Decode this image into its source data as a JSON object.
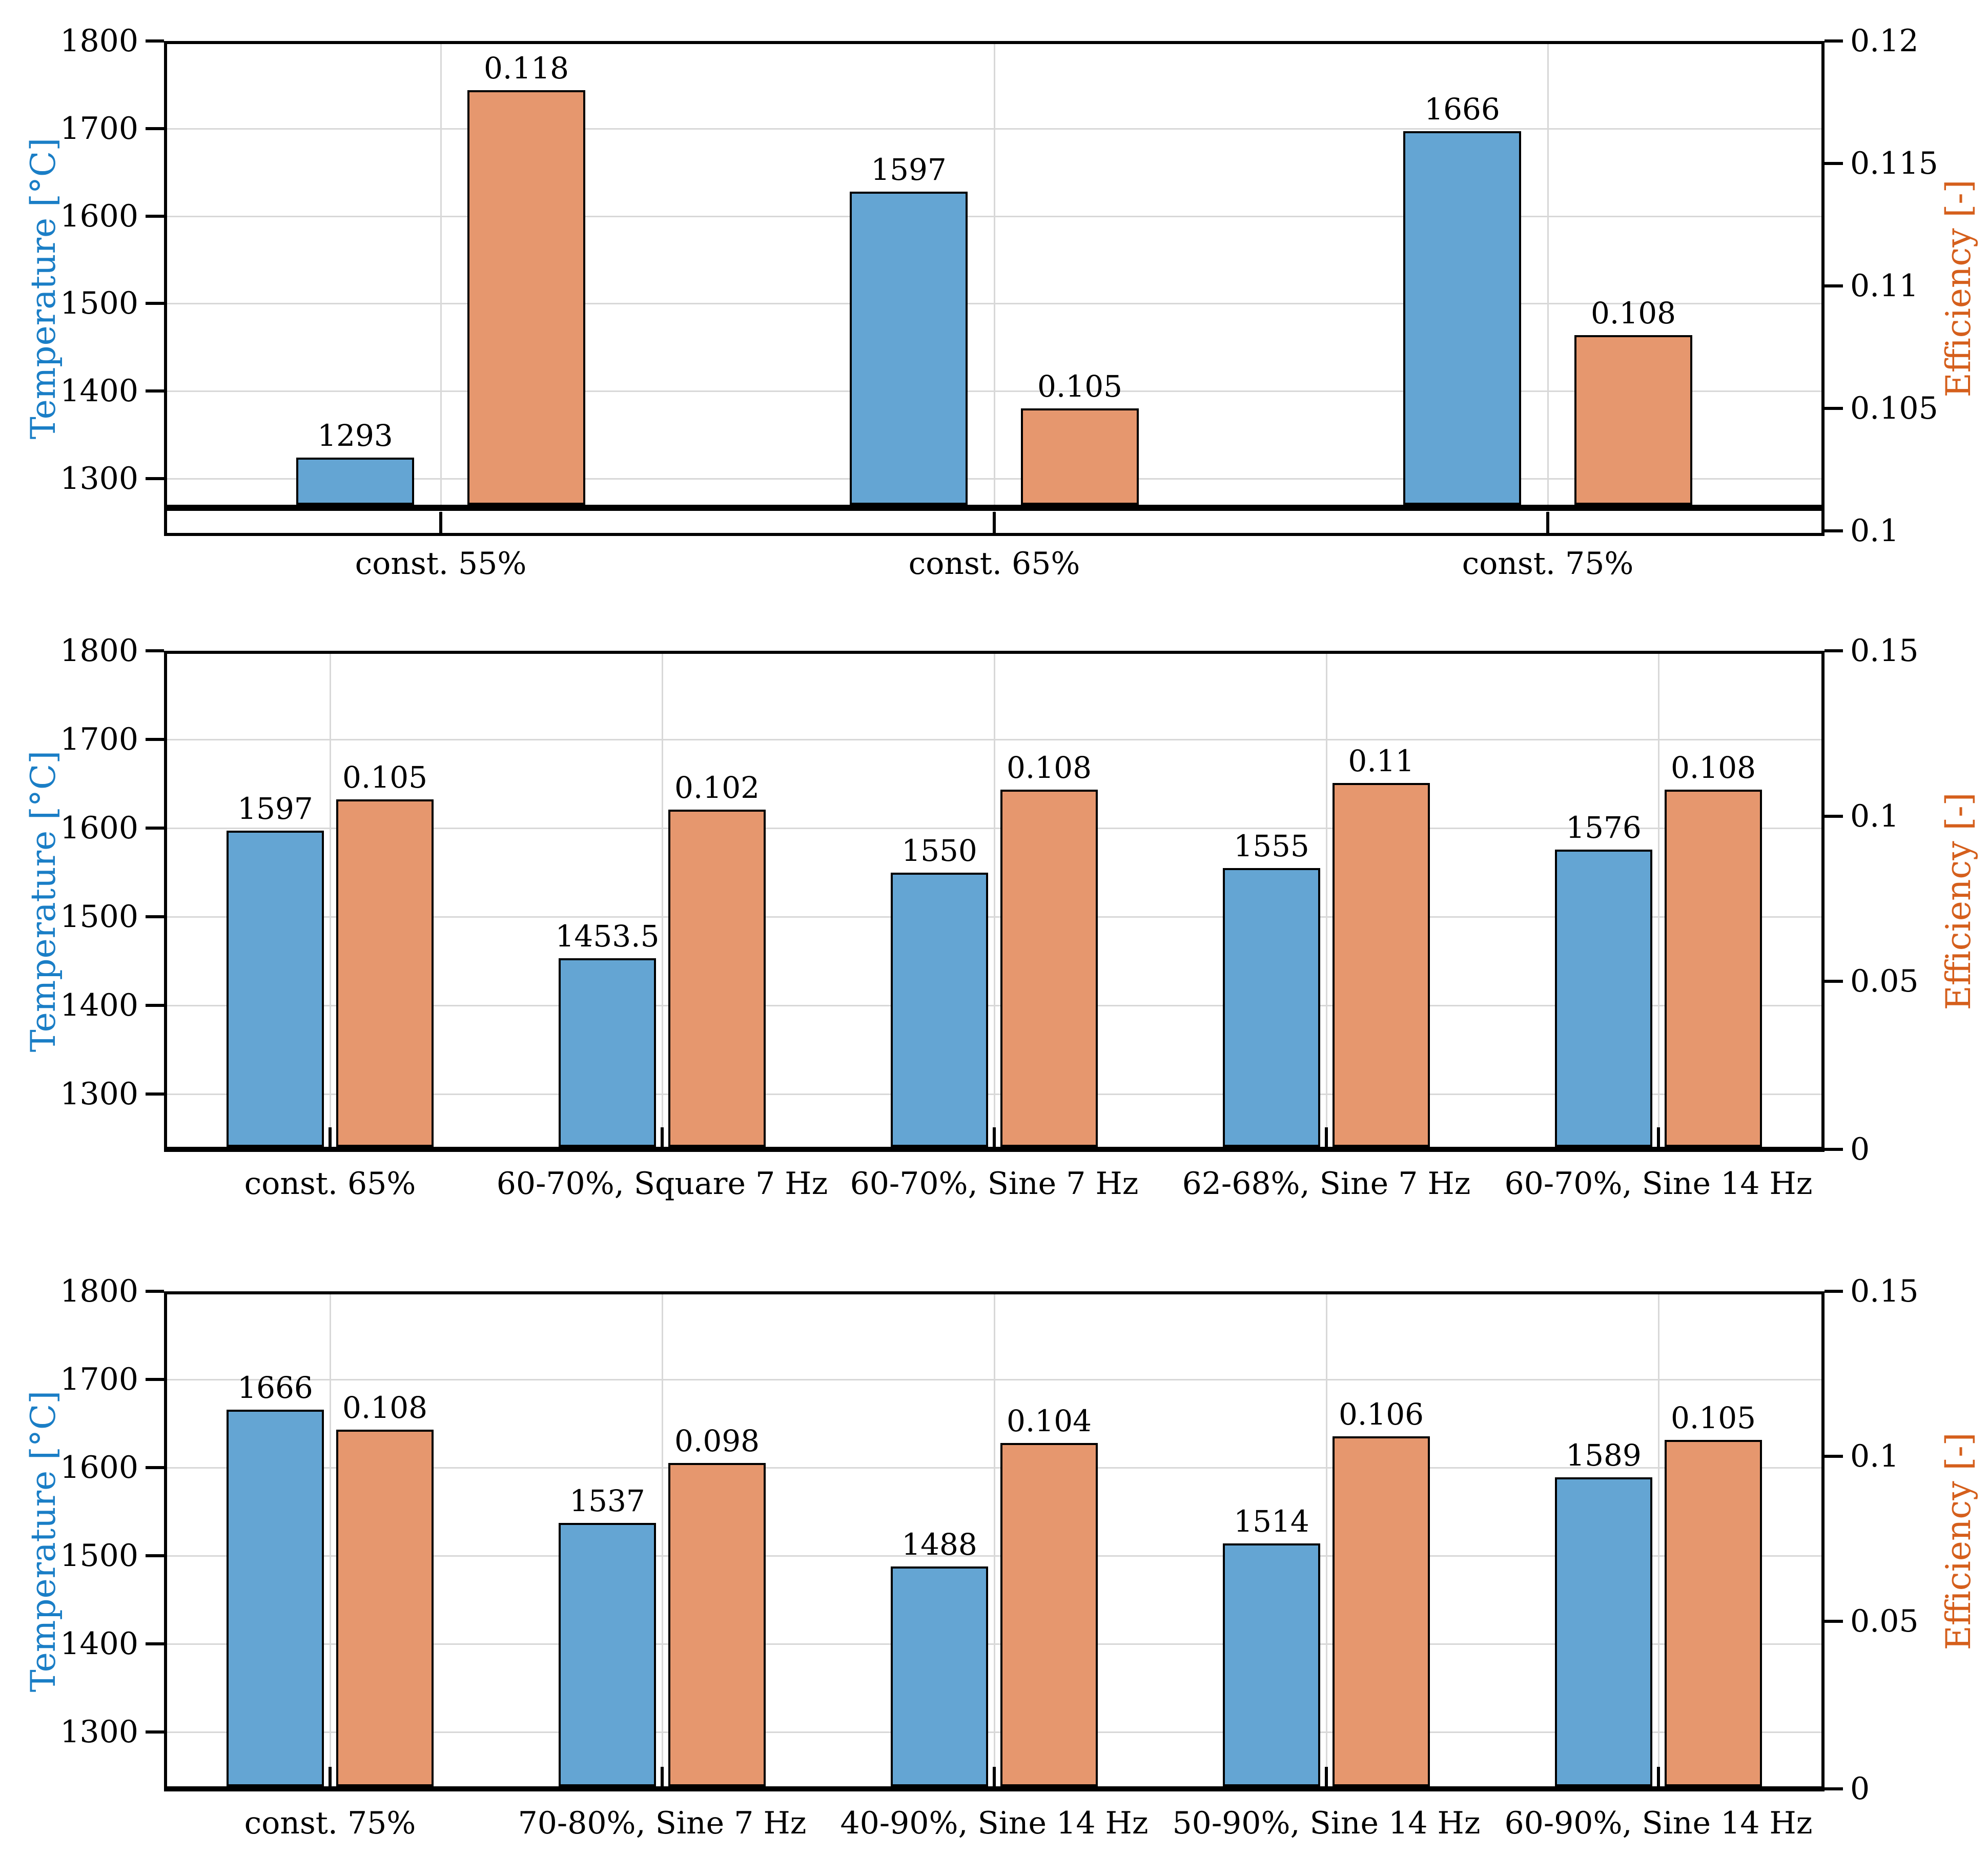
{
  "colors": {
    "temperature_bar": "#64a5d3",
    "efficiency_bar": "#e6976e",
    "bar_edge": "#000000",
    "temperature_axis_label": "#1a7ec6",
    "efficiency_axis_label": "#d55f1c",
    "grid": "#d8d8d8"
  },
  "chart_data": [
    {
      "type": "bar",
      "dual_axis": true,
      "grid": true,
      "legend_position": "none",
      "left_axis": {
        "label": "Temperature [°C]",
        "unit": "°C",
        "ticks": [
          "1800",
          "1700",
          "1600",
          "1500",
          "1400",
          "1300"
        ],
        "range_top": 1800
      },
      "right_axis": {
        "label": "Efficiency [-]",
        "ticks": [
          "0.12",
          "0.115",
          "0.11",
          "0.105",
          "0.1"
        ],
        "range": [
          0.1,
          0.12
        ]
      },
      "categories": [
        "const. 55%",
        "const. 65%",
        "const. 75%"
      ],
      "series": [
        {
          "name": "Temperature",
          "axis": "left",
          "values": [
            1293,
            1597,
            1666
          ],
          "labels": [
            "1293",
            "1597",
            "1666"
          ]
        },
        {
          "name": "Efficiency",
          "axis": "right",
          "values": [
            0.118,
            0.105,
            0.108
          ],
          "labels": [
            "0.118",
            "0.105",
            "0.108"
          ]
        }
      ]
    },
    {
      "type": "bar",
      "dual_axis": true,
      "grid": true,
      "legend_position": "none",
      "left_axis": {
        "label": "Temperature [°C]",
        "unit": "°C",
        "ticks": [
          "1800",
          "1700",
          "1600",
          "1500",
          "1400",
          "1300"
        ],
        "range_top": 1800
      },
      "right_axis": {
        "label": "Efficiency [-]",
        "ticks": [
          "0.15",
          "0.1",
          "0.05",
          "0"
        ],
        "range": [
          0,
          0.15
        ]
      },
      "categories": [
        "const. 65%",
        "60-70%, Square 7 Hz",
        "60-70%, Sine 7 Hz",
        "62-68%, Sine 7 Hz",
        "60-70%, Sine 14 Hz"
      ],
      "series": [
        {
          "name": "Temperature",
          "axis": "left",
          "values": [
            1597,
            1453.5,
            1550,
            1555,
            1576
          ],
          "labels": [
            "1597",
            "1453.5",
            "1550",
            "1555",
            "1576"
          ]
        },
        {
          "name": "Efficiency",
          "axis": "right",
          "values": [
            0.105,
            0.102,
            0.108,
            0.11,
            0.108
          ],
          "labels": [
            "0.105",
            "0.102",
            "0.108",
            "0.11",
            "0.108"
          ]
        }
      ]
    },
    {
      "type": "bar",
      "dual_axis": true,
      "grid": true,
      "legend_position": "none",
      "left_axis": {
        "label": "Temperature [°C]",
        "unit": "°C",
        "ticks": [
          "1800",
          "1700",
          "1600",
          "1500",
          "1400",
          "1300"
        ],
        "range_top": 1800
      },
      "right_axis": {
        "label": "Efficiency [-]",
        "ticks": [
          "0.15",
          "0.1",
          "0.05",
          "0"
        ],
        "range": [
          0,
          0.15
        ]
      },
      "categories": [
        "const. 75%",
        "70-80%, Sine 7 Hz",
        "40-90%, Sine 14 Hz",
        "50-90%, Sine 14 Hz",
        "60-90%, Sine 14 Hz"
      ],
      "series": [
        {
          "name": "Temperature",
          "axis": "left",
          "values": [
            1666,
            1537,
            1488,
            1514,
            1589
          ],
          "labels": [
            "1666",
            "1537",
            "1488",
            "1514",
            "1589"
          ]
        },
        {
          "name": "Efficiency",
          "axis": "right",
          "values": [
            0.108,
            0.098,
            0.104,
            0.106,
            0.105
          ],
          "labels": [
            "0.108",
            "0.098",
            "0.104",
            "0.106",
            "0.105"
          ]
        }
      ]
    }
  ]
}
